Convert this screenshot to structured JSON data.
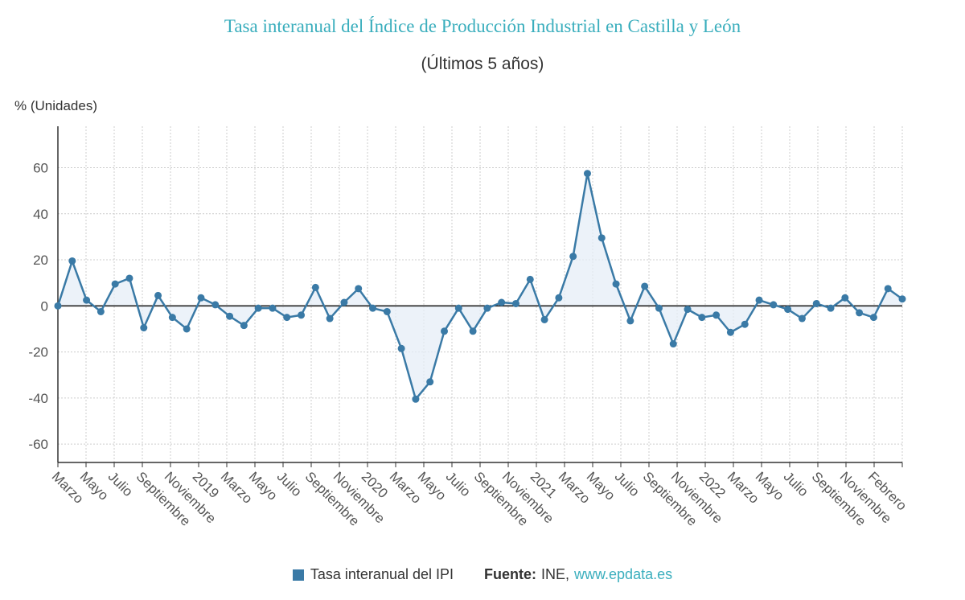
{
  "chart_data": {
    "type": "line",
    "title": "Tasa interanual del Índice de Producción Industrial en Castilla y León",
    "subtitle": "(Últimos 5 años)",
    "ylabel": "% (Unidades)",
    "ylim": [
      -68,
      78
    ],
    "yticks": [
      60,
      40,
      20,
      0,
      -20,
      -40,
      -60
    ],
    "grid": true,
    "legend_position": "bottom-center",
    "x_labels": [
      "Marzo",
      "Mayo",
      "Julio",
      "Septiembre",
      "Noviembre",
      "2019",
      "Marzo",
      "Mayo",
      "Julio",
      "Septiembre",
      "Noviembre",
      "2020",
      "Marzo",
      "Mayo",
      "Julio",
      "Septiembre",
      "Noviembre",
      "2021",
      "Marzo",
      "Mayo",
      "Julio",
      "Septiembre",
      "Noviembre",
      "2022",
      "Marzo",
      "Mayo",
      "Julio",
      "Septiembre",
      "Noviembre",
      "Febrero"
    ],
    "series": [
      {
        "name": "Tasa interanual del IPI",
        "color": "#3a7aa6",
        "values": [
          0,
          19.5,
          2.5,
          -2.5,
          9.5,
          12,
          -9.5,
          4.5,
          -5,
          -10,
          3.5,
          0.5,
          -4.5,
          -8.5,
          -1,
          -1,
          -5,
          -4,
          8,
          -5.5,
          1.5,
          7.5,
          -1,
          -2.5,
          -18.5,
          -40.5,
          -33,
          -11,
          -1,
          -11,
          -1,
          1.5,
          1,
          11.5,
          -6,
          3.5,
          21.5,
          57.5,
          29.5,
          9.5,
          -6.5,
          8.5,
          -1,
          -16.5,
          -1.5,
          -5,
          -4,
          -11.5,
          -8,
          2.5,
          0.5,
          -1.5,
          -5.5,
          1,
          -1,
          3.5,
          -3,
          -5,
          7.5,
          3
        ]
      }
    ]
  },
  "legend": {
    "series_label": "Tasa interanual del IPI",
    "source_label": "Fuente:",
    "source_text": "INE,",
    "source_link": "www.epdata.es"
  }
}
